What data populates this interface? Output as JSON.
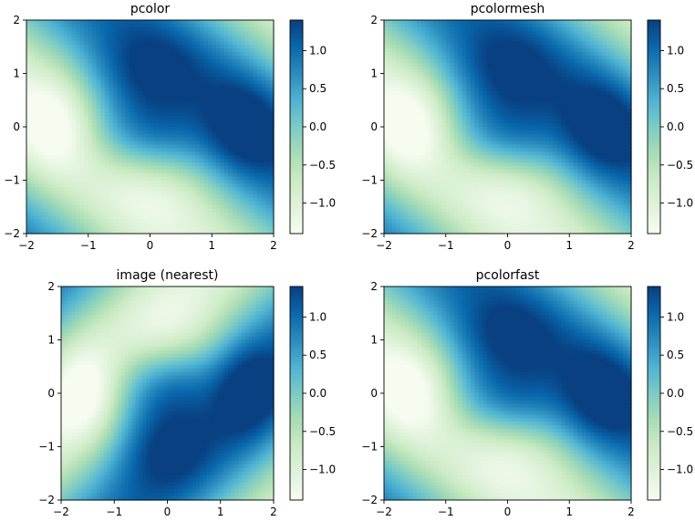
{
  "chart_data": [
    {
      "type": "heatmap",
      "title": "pcolor",
      "xlim": [
        -2,
        2
      ],
      "ylim": [
        -2,
        2
      ],
      "xticks": [
        -2,
        -1,
        0,
        1,
        2
      ],
      "yticks": [
        -2,
        -1,
        0,
        1,
        2
      ],
      "xtick_labels": [
        "−2",
        "−1",
        "0",
        "1",
        "2"
      ],
      "ytick_labels": [
        "−2",
        "−1",
        "0",
        "1",
        "2"
      ],
      "colorbar": {
        "vmin": -1.4,
        "vmax": 1.4,
        "ticks": [
          -1.0,
          -0.5,
          0.0,
          0.5,
          1.0
        ],
        "tick_labels": [
          "−1.0",
          "−0.5",
          "0.0",
          "0.5",
          "1.0"
        ]
      },
      "colormap": "GnBu",
      "grid": false,
      "function": "(1 - x/2 + x^5 + y^3) * exp(-x^2 - y^2) + sin(x+y)",
      "interpolation": "flat"
    },
    {
      "type": "heatmap",
      "title": "pcolormesh",
      "xlim": [
        -2,
        2
      ],
      "ylim": [
        -2,
        2
      ],
      "xticks": [
        -2,
        -1,
        0,
        1,
        2
      ],
      "yticks": [
        -2,
        -1,
        0,
        1,
        2
      ],
      "xtick_labels": [
        "−2",
        "−1",
        "0",
        "1",
        "2"
      ],
      "ytick_labels": [
        "−2",
        "−1",
        "0",
        "1",
        "2"
      ],
      "colorbar": {
        "vmin": -1.4,
        "vmax": 1.4,
        "ticks": [
          -1.0,
          -0.5,
          0.0,
          0.5,
          1.0
        ],
        "tick_labels": [
          "−1.0",
          "−0.5",
          "0.0",
          "0.5",
          "1.0"
        ]
      },
      "colormap": "GnBu",
      "grid": false,
      "function": "(1 - x/2 + x^5 + y^3) * exp(-x^2 - y^2) + sin(x+y)",
      "interpolation": "flat"
    },
    {
      "type": "heatmap",
      "title": "image (nearest)",
      "xlim": [
        -2,
        2
      ],
      "ylim": [
        -2,
        2
      ],
      "xticks": [
        -2,
        -1,
        0,
        1,
        2
      ],
      "yticks": [
        -2,
        -1,
        0,
        1,
        2
      ],
      "xtick_labels": [
        "−2",
        "−1",
        "0",
        "1",
        "2"
      ],
      "ytick_labels": [
        "−2",
        "−1",
        "0",
        "1",
        "2"
      ],
      "colorbar": {
        "vmin": -1.4,
        "vmax": 1.4,
        "ticks": [
          -1.0,
          -0.5,
          0.0,
          0.5,
          1.0
        ],
        "tick_labels": [
          "−1.0",
          "−0.5",
          "0.0",
          "0.5",
          "1.0"
        ]
      },
      "colormap": "GnBu",
      "grid": false,
      "function": "(1 - x/2 + x^5 + y^3) * exp(-x^2 - y^2) + sin(x+y)",
      "interpolation": "nearest",
      "origin": "upper"
    },
    {
      "type": "heatmap",
      "title": "pcolorfast",
      "xlim": [
        -2,
        2
      ],
      "ylim": [
        -2,
        2
      ],
      "xticks": [
        -2,
        -1,
        0,
        1,
        2
      ],
      "yticks": [
        -2,
        -1,
        0,
        1,
        2
      ],
      "xtick_labels": [
        "−2",
        "−1",
        "0",
        "1",
        "2"
      ],
      "ytick_labels": [
        "−2",
        "−1",
        "0",
        "1",
        "2"
      ],
      "colorbar": {
        "vmin": -1.4,
        "vmax": 1.4,
        "ticks": [
          -1.0,
          -0.5,
          0.0,
          0.5,
          1.0
        ],
        "tick_labels": [
          "−1.0",
          "−0.5",
          "0.0",
          "0.5",
          "1.0"
        ]
      },
      "colormap": "GnBu",
      "grid": false,
      "function": "(1 - x/2 + x^5 + y^3) * exp(-x^2 - y^2) + sin(x+y)",
      "interpolation": "flat"
    }
  ],
  "colormap_stops": [
    "#f7fcf0",
    "#e0f3db",
    "#ccebc5",
    "#a8ddb5",
    "#7bccc4",
    "#4eb3d3",
    "#2b8cbe",
    "#0868ac",
    "#084081"
  ]
}
